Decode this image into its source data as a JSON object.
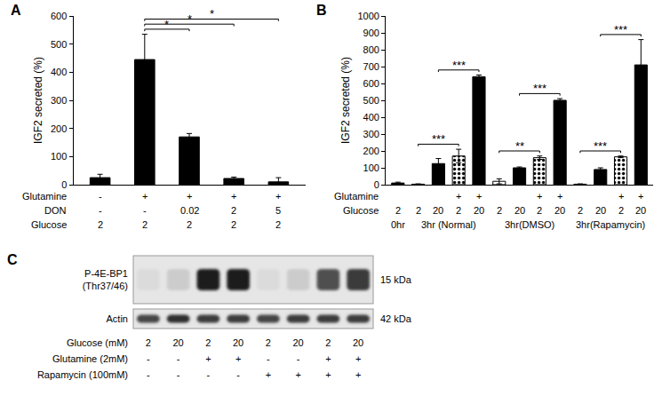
{
  "chart_data": [
    {
      "panel": "A",
      "type": "bar",
      "y_label": "IGF2 secreted (%)",
      "values": [
        25,
        445,
        170,
        22,
        10
      ],
      "errors": [
        12,
        90,
        12,
        5,
        15
      ],
      "color": "#000000",
      "ylim": [
        0,
        600
      ],
      "yticks": [
        0,
        100,
        200,
        300,
        400,
        500,
        600
      ],
      "condition_rows": [
        {
          "label": "Glutamine",
          "cells": [
            "-",
            "+",
            "+",
            "+",
            "+"
          ]
        },
        {
          "label": "DON",
          "cells": [
            "-",
            "-",
            "0.02",
            "2",
            "5"
          ]
        },
        {
          "label": "Glucose",
          "cells": [
            "2",
            "2",
            "2",
            "2",
            "2"
          ]
        }
      ],
      "significance": [
        {
          "from": 1,
          "to": 2,
          "label": "*"
        },
        {
          "from": 1,
          "to": 3,
          "label": "*"
        },
        {
          "from": 1,
          "to": 4,
          "label": "*"
        }
      ]
    },
    {
      "panel": "B",
      "type": "bar",
      "y_label": "IGF2 secreted (%)",
      "series": [
        {
          "color": "#000000",
          "colors": [
            "#000000",
            "#000000",
            "#000000",
            null,
            "#000000",
            "#ffffff",
            "#000000",
            null,
            "#000000",
            "#000000",
            "#000000",
            null,
            "#000000"
          ],
          "values": [
            10,
            3,
            125,
            null,
            640,
            20,
            100,
            null,
            500,
            3,
            90,
            null,
            710
          ],
          "errors": [
            5,
            2,
            30,
            null,
            10,
            15,
            5,
            null,
            10,
            2,
            10,
            null,
            150
          ]
        },
        {
          "color": "#000000",
          "marker": "dotted",
          "values": [
            null,
            null,
            null,
            170,
            null,
            null,
            null,
            160,
            null,
            null,
            null,
            165,
            null
          ],
          "errors": [
            null,
            null,
            null,
            40,
            null,
            null,
            null,
            10,
            null,
            null,
            null,
            5,
            null
          ]
        }
      ],
      "ylim": [
        0,
        1000
      ],
      "yticks": [
        0,
        100,
        200,
        300,
        400,
        500,
        600,
        700,
        800,
        900,
        1000
      ],
      "condition_rows": [
        {
          "label": "Glutamine",
          "cells": [
            null,
            null,
            null,
            "+",
            "+",
            null,
            null,
            "+",
            "+",
            null,
            null,
            "+",
            "+"
          ]
        },
        {
          "label": "Glucose",
          "cells": [
            "2",
            "2",
            "20",
            "2",
            "20",
            "2",
            "20",
            "2",
            "20",
            "2",
            "20",
            "2",
            "20"
          ]
        }
      ],
      "groups": [
        {
          "label": "0hr",
          "from": 0,
          "to": 0
        },
        {
          "label": "3hr (Normal)",
          "from": 1,
          "to": 4
        },
        {
          "label": "3hr(DMSO)",
          "from": 5,
          "to": 8
        },
        {
          "label": "3hr(Rapamycin)",
          "from": 9,
          "to": 12
        }
      ],
      "significance": [
        {
          "from": 1,
          "to": 3,
          "label": "***"
        },
        {
          "from": 2,
          "to": 4,
          "label": "***"
        },
        {
          "from": 5,
          "to": 7,
          "label": "**"
        },
        {
          "from": 6,
          "to": 8,
          "label": "***"
        },
        {
          "from": 9,
          "to": 11,
          "label": "***"
        },
        {
          "from": 10,
          "to": 12,
          "label": "***"
        }
      ]
    }
  ],
  "blot": {
    "panel": "C",
    "type": "western_blot",
    "bands": [
      {
        "label": [
          "P-4E-BP1",
          "(Thr37/46)"
        ],
        "size": "15 kDa",
        "band_intensity": [
          0.05,
          0.12,
          0.95,
          0.95,
          0.05,
          0.12,
          0.7,
          0.8
        ]
      },
      {
        "label": [
          "Actin"
        ],
        "size": "42 kDa",
        "band_intensity": [
          0.75,
          0.85,
          0.8,
          0.8,
          0.75,
          0.8,
          0.8,
          0.8
        ]
      }
    ],
    "lane_rows": [
      {
        "label": "Glucose (mM)",
        "cells": [
          "2",
          "20",
          "2",
          "20",
          "2",
          "20",
          "2",
          "20"
        ]
      },
      {
        "label": "Glutamine (2mM)",
        "cells": [
          "-",
          "-",
          "+",
          "+",
          "-",
          "-",
          "+",
          "+"
        ]
      },
      {
        "label": "Rapamycin (100mM)",
        "cells": [
          "-",
          "-",
          "-",
          "-",
          "+",
          "+",
          "+",
          "+"
        ]
      }
    ]
  }
}
